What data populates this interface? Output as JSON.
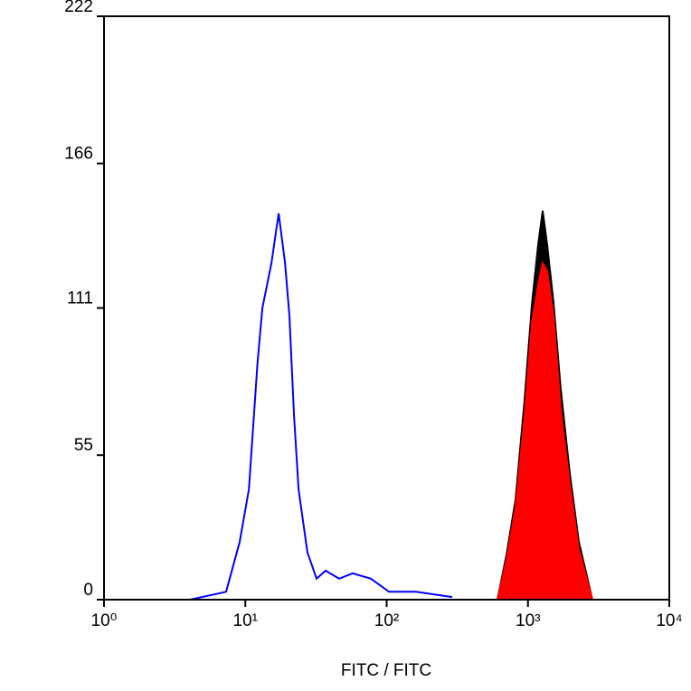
{
  "chart_data": {
    "type": "histogram-overlay",
    "x_label": "FITC / FITC",
    "xscale": "log",
    "xlim": [
      1,
      10000
    ],
    "xticks": [
      {
        "value": 1,
        "label": "10⁰"
      },
      {
        "value": 10,
        "label": "10¹"
      },
      {
        "value": 100,
        "label": "10²"
      },
      {
        "value": 1000,
        "label": "10³"
      },
      {
        "value": 10000,
        "label": "10⁴"
      }
    ],
    "ylim": [
      0,
      222
    ],
    "yticks": [
      0,
      55,
      111,
      166,
      222
    ],
    "series": [
      {
        "color": "#000000",
        "fill": true,
        "x": [
          608,
          705,
          817,
          946,
          1064,
          1180,
          1270,
          1368,
          1517,
          1706,
          1977,
          2291,
          2858
        ],
        "values": [
          0,
          17,
          38,
          76,
          112,
          135,
          148,
          135,
          113,
          80,
          48,
          22,
          0
        ]
      },
      {
        "color": "#ff0000",
        "fill": true,
        "x": [
          608,
          705,
          817,
          946,
          1064,
          1180,
          1270,
          1368,
          1517,
          1706,
          1977,
          2291,
          2858
        ],
        "values": [
          0,
          15,
          35,
          70,
          105,
          120,
          128,
          125,
          108,
          72,
          44,
          19,
          0
        ]
      },
      {
        "color": "#0000ff",
        "fill": false,
        "x": [
          4.06,
          7.31,
          9.12,
          10.6,
          12.2,
          13.2,
          15.3,
          17.2,
          19.1,
          20.5,
          22.1,
          23.8,
          27.5,
          31.9,
          37,
          46.1,
          57.5,
          77.3,
          104,
          161,
          291
        ],
        "values": [
          0,
          3,
          22,
          42,
          90,
          111,
          128,
          147,
          128,
          108,
          70,
          42,
          18,
          8,
          11,
          8,
          10,
          8,
          3,
          3,
          1
        ]
      }
    ]
  }
}
